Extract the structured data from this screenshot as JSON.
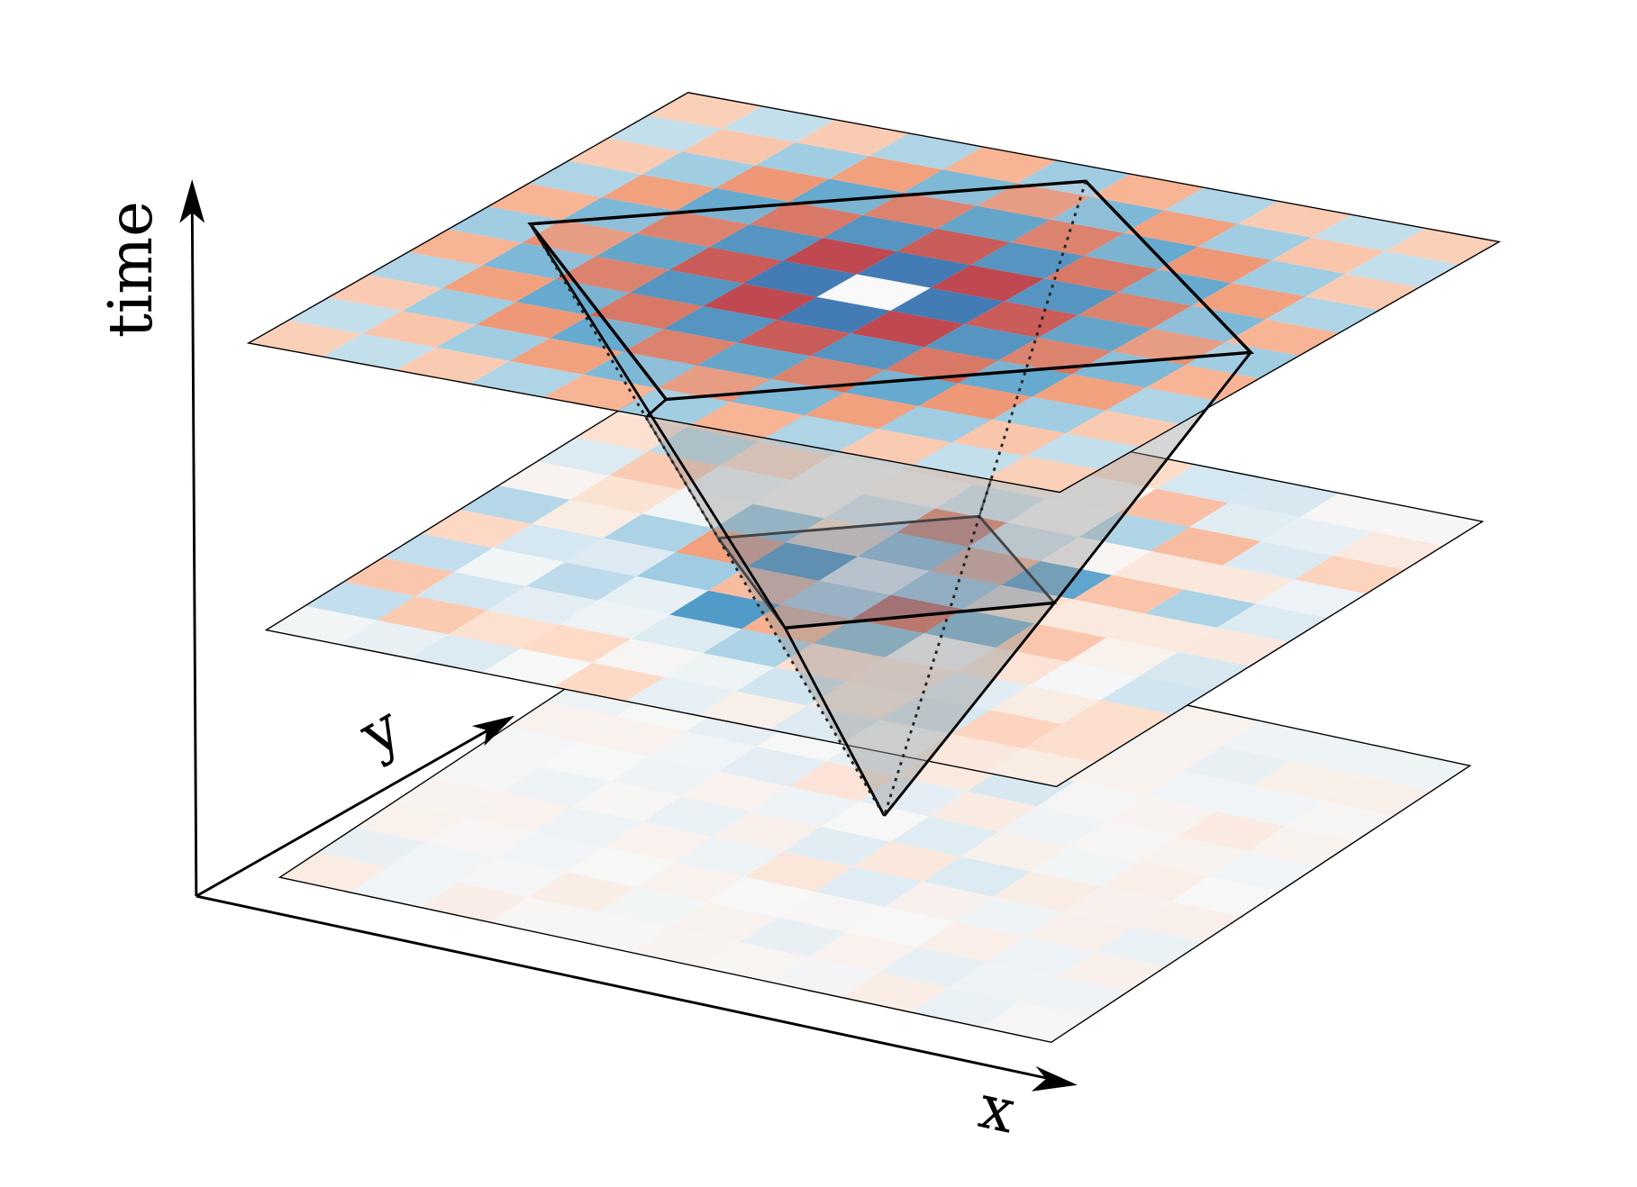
{
  "axes": {
    "time_label": "time",
    "x_label": "x",
    "y_label": "y"
  },
  "colormap": [
    "#b2182b",
    "#d6604d",
    "#f4a582",
    "#fddbc7",
    "#f7f7f7",
    "#d1e5f0",
    "#92c5de",
    "#4393c3",
    "#2166ac"
  ],
  "planes": [
    {
      "name": "bottom-plane",
      "grid": 11,
      "intensity": 0.15
    },
    {
      "name": "middle-plane",
      "grid": 11,
      "intensity": 0.5
    },
    {
      "name": "top-plane",
      "grid": 11,
      "intensity": 1.0
    }
  ]
}
